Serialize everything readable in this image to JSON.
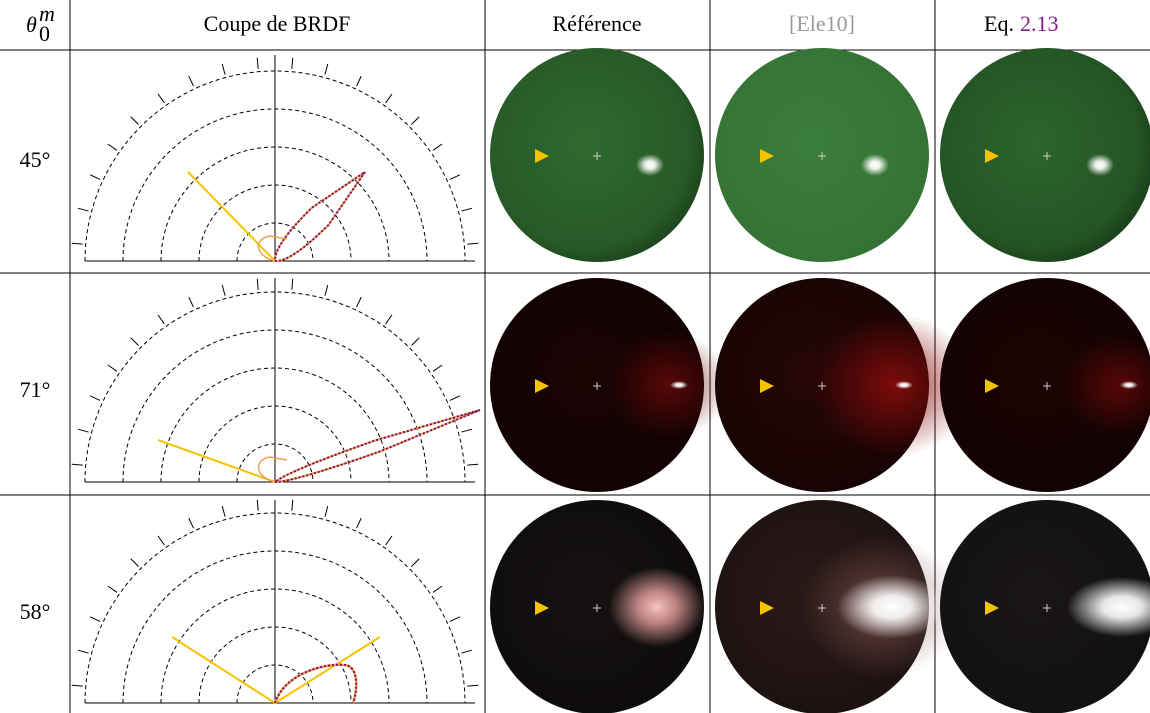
{
  "header": {
    "theta": "θ",
    "theta_sub": "0",
    "theta_sup": "m",
    "brdf": "Coupe de BRDF",
    "reference": "Référence",
    "ele10": "[Ele10]",
    "eq": "Eq.",
    "eq_ref": "2.13"
  },
  "rows": [
    "45°",
    "71°",
    "58°"
  ]
}
